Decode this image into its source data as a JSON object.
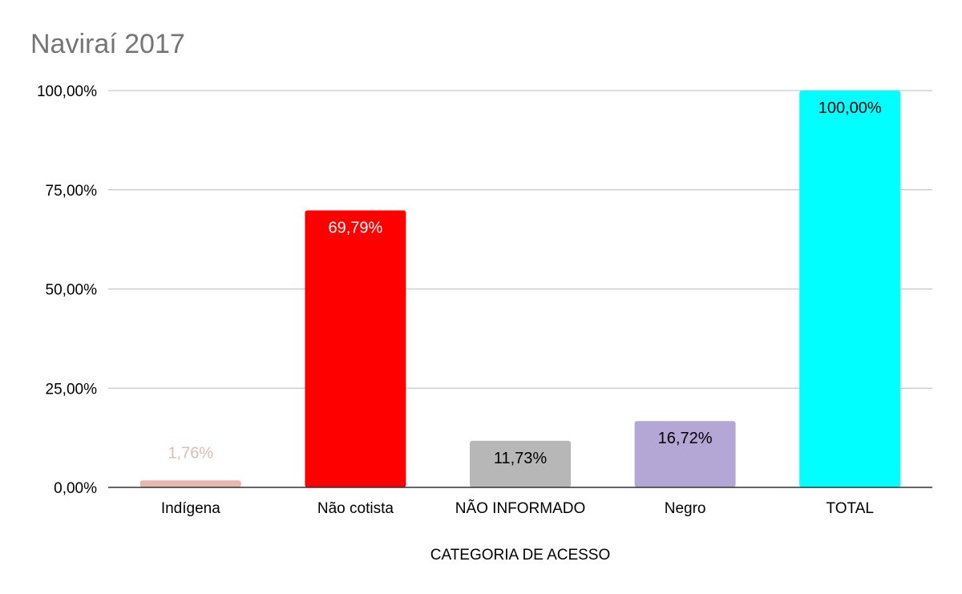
{
  "chart_data": {
    "type": "bar",
    "title": "Naviraí 2017",
    "xlabel": "CATEGORIA DE ACESSO",
    "ylabel": "",
    "ylim": [
      0,
      100
    ],
    "y_ticks": [
      0,
      25,
      50,
      75,
      100
    ],
    "y_tick_labels": [
      "0,00%",
      "25,00%",
      "50,00%",
      "75,00%",
      "100,00%"
    ],
    "categories": [
      "Indígena",
      "Não cotista",
      "NÃO INFORMADO",
      "Negro",
      "TOTAL"
    ],
    "values": [
      1.76,
      69.79,
      11.73,
      16.72,
      100.0
    ],
    "data_labels": [
      "1,76%",
      "69,79%",
      "11,73%",
      "16,72%",
      "100,00%"
    ],
    "bar_colors": [
      "#e6b8af",
      "#ff0000",
      "#b7b7b7",
      "#b4a7d6",
      "#00ffff"
    ],
    "label_colors": [
      "#e6b8af",
      "#ffffff",
      "#000000",
      "#000000",
      "#000000"
    ],
    "grid": true,
    "legend": "none"
  }
}
